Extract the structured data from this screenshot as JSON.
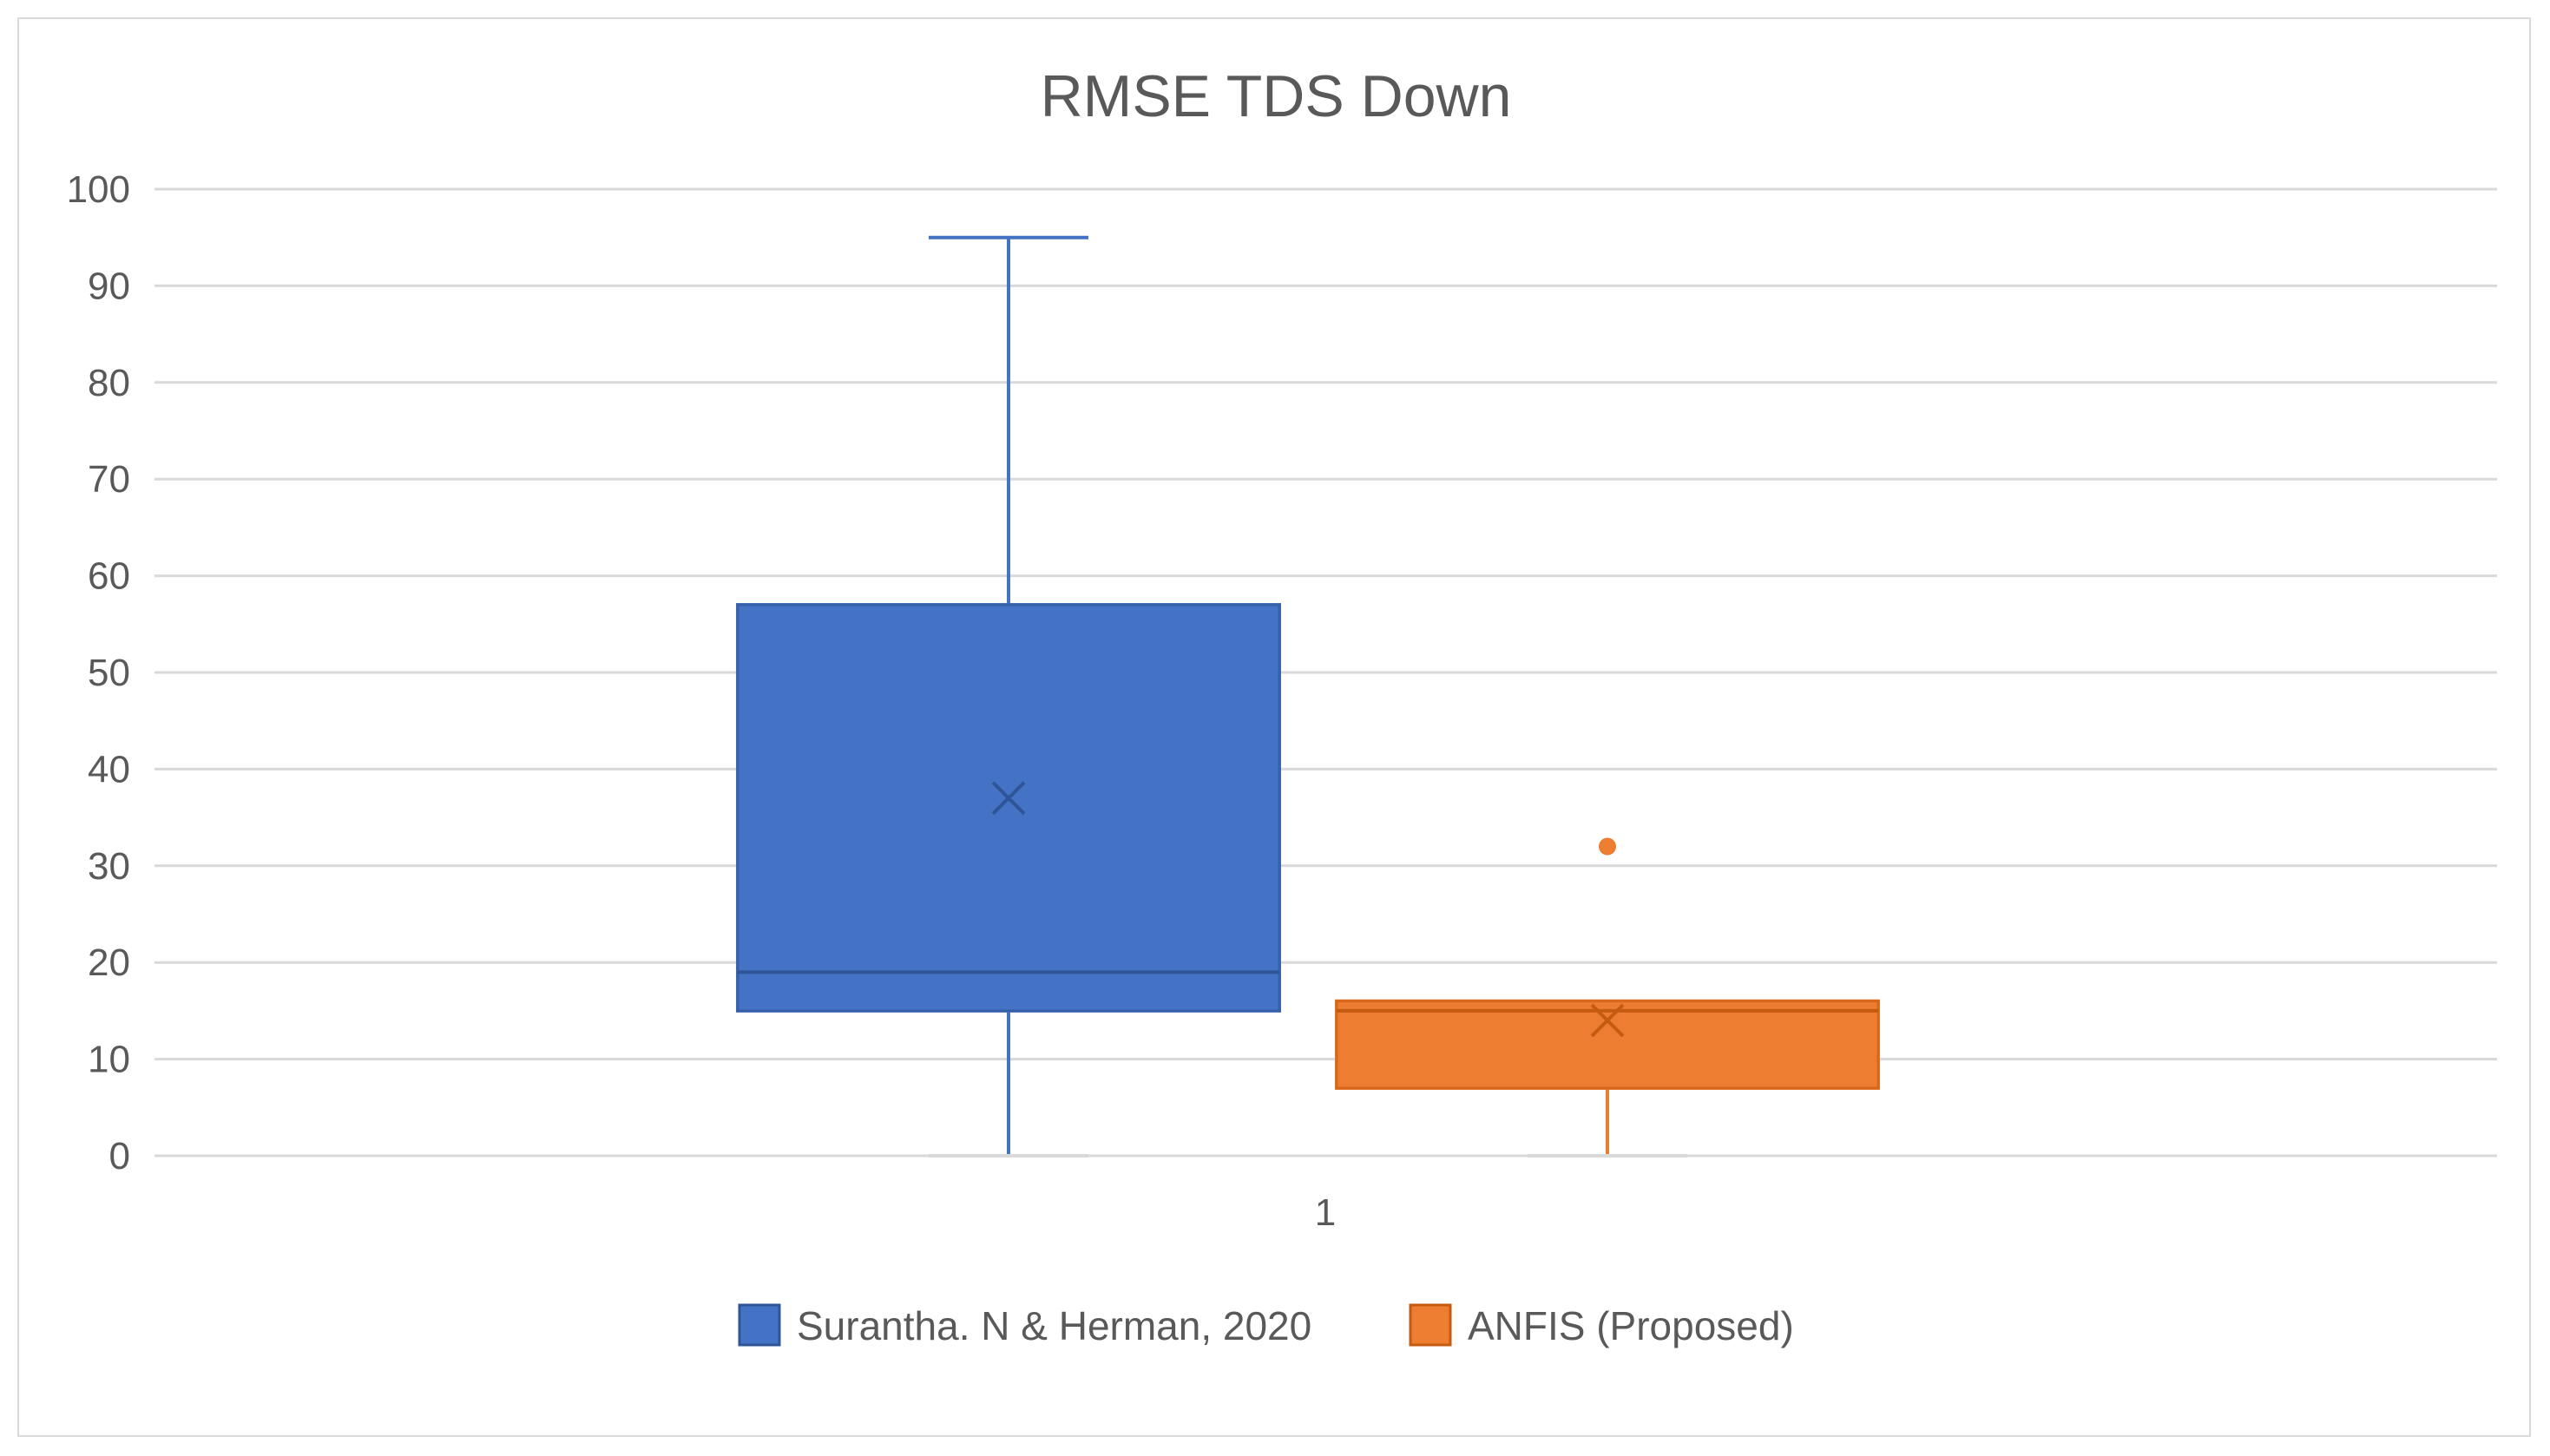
{
  "chart_data": {
    "type": "box",
    "title": "RMSE TDS Down",
    "xlabel": "",
    "ylabel": "",
    "categories": [
      "1"
    ],
    "ylim": [
      0,
      100
    ],
    "yticks": [
      0,
      10,
      20,
      30,
      40,
      50,
      60,
      70,
      80,
      90,
      100
    ],
    "grid": true,
    "legend_position": "bottom",
    "series": [
      {
        "name": "Surantha. N & Herman, 2020",
        "color": "#4472C4",
        "min": 0,
        "q1": 15,
        "median": 19,
        "q3": 57,
        "max": 95,
        "mean": 37,
        "outliers": []
      },
      {
        "name": "ANFIS (Proposed)",
        "color": "#ED7D31",
        "min": 0,
        "q1": 7,
        "median": 15,
        "q3": 16,
        "max": 16,
        "mean": 14,
        "outliers": [
          32
        ]
      }
    ]
  }
}
